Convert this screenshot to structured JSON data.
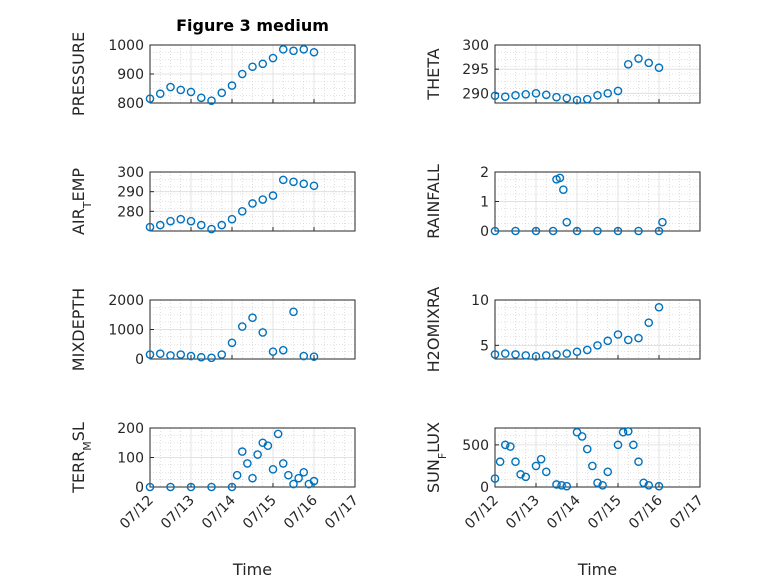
{
  "figure": {
    "title": "Figure 3 medium"
  },
  "colors": {
    "marker": "#0072BD",
    "axis": "#262626",
    "grid": "#dcdcdc"
  },
  "chart_data": [
    {
      "type": "scatter",
      "ylabel": "PRESSURE",
      "title": "Figure 3 medium",
      "ylim": [
        800,
        1000
      ],
      "yticks": [
        800,
        900,
        1000
      ],
      "x": [
        "07/12 00:00",
        "07/12 06:00",
        "07/12 12:00",
        "07/12 18:00",
        "07/13 00:00",
        "07/13 06:00",
        "07/13 12:00",
        "07/13 18:00",
        "07/14 00:00",
        "07/14 06:00",
        "07/14 12:00",
        "07/14 18:00",
        "07/15 00:00",
        "07/15 06:00",
        "07/15 12:00",
        "07/15 18:00",
        "07/16 00:00"
      ],
      "y": [
        815,
        832,
        855,
        845,
        838,
        818,
        808,
        835,
        860,
        900,
        925,
        935,
        955,
        985,
        980,
        985,
        975
      ]
    },
    {
      "type": "scatter",
      "ylabel": "THETA",
      "ylim": [
        288,
        300
      ],
      "yticks": [
        290,
        295,
        300
      ],
      "x": [
        "07/12 00:00",
        "07/12 06:00",
        "07/12 12:00",
        "07/12 18:00",
        "07/13 00:00",
        "07/13 06:00",
        "07/13 12:00",
        "07/13 18:00",
        "07/14 00:00",
        "07/14 06:00",
        "07/14 12:00",
        "07/14 18:00",
        "07/15 00:00",
        "07/15 06:00",
        "07/15 12:00",
        "07/15 18:00",
        "07/16 00:00"
      ],
      "y": [
        289.5,
        289.3,
        289.6,
        289.8,
        290.0,
        289.7,
        289.2,
        289.0,
        288.6,
        288.8,
        289.6,
        290.0,
        290.5,
        296.0,
        297.2,
        296.3,
        295.3
      ]
    },
    {
      "type": "scatter",
      "ylabel": "AIR_TEMP",
      "ylim": [
        270,
        300
      ],
      "yticks": [
        280,
        290,
        300
      ],
      "x": [
        "07/12 00:00",
        "07/12 06:00",
        "07/12 12:00",
        "07/12 18:00",
        "07/13 00:00",
        "07/13 06:00",
        "07/13 12:00",
        "07/13 18:00",
        "07/14 00:00",
        "07/14 06:00",
        "07/14 12:00",
        "07/14 18:00",
        "07/15 00:00",
        "07/15 06:00",
        "07/15 12:00",
        "07/15 18:00",
        "07/16 00:00"
      ],
      "y": [
        272,
        273,
        275,
        276,
        275,
        273,
        271,
        273,
        276,
        280,
        284,
        286,
        288,
        296,
        295,
        294,
        293
      ]
    },
    {
      "type": "scatter",
      "ylabel": "RAINFALL",
      "ylim": [
        0,
        2
      ],
      "yticks": [
        0,
        1,
        2
      ],
      "x": [
        "07/12 00:00",
        "07/12 12:00",
        "07/13 00:00",
        "07/13 10:00",
        "07/13 12:00",
        "07/13 14:00",
        "07/13 16:00",
        "07/13 18:00",
        "07/14 00:00",
        "07/14 12:00",
        "07/15 00:00",
        "07/15 12:00",
        "07/16 00:00",
        "07/16 02:00"
      ],
      "y": [
        0,
        0,
        0,
        0,
        1.75,
        1.8,
        1.4,
        0.3,
        0,
        0,
        0,
        0,
        0,
        0.3
      ]
    },
    {
      "type": "scatter",
      "ylabel": "MIXDEPTH",
      "ylim": [
        0,
        2000
      ],
      "yticks": [
        0,
        1000,
        2000
      ],
      "x": [
        "07/12 00:00",
        "07/12 06:00",
        "07/12 12:00",
        "07/12 18:00",
        "07/13 00:00",
        "07/13 06:00",
        "07/13 12:00",
        "07/13 18:00",
        "07/14 00:00",
        "07/14 06:00",
        "07/14 12:00",
        "07/14 18:00",
        "07/15 00:00",
        "07/15 06:00",
        "07/15 12:00",
        "07/15 18:00",
        "07/16 00:00"
      ],
      "y": [
        150,
        180,
        120,
        150,
        100,
        60,
        40,
        150,
        550,
        1100,
        1400,
        900,
        250,
        300,
        1600,
        100,
        80
      ]
    },
    {
      "type": "scatter",
      "ylabel": "H2OMIXRA",
      "ylim": [
        3.5,
        10
      ],
      "yticks": [
        5,
        10
      ],
      "x": [
        "07/12 00:00",
        "07/12 06:00",
        "07/12 12:00",
        "07/12 18:00",
        "07/13 00:00",
        "07/13 06:00",
        "07/13 12:00",
        "07/13 18:00",
        "07/14 00:00",
        "07/14 06:00",
        "07/14 12:00",
        "07/14 18:00",
        "07/15 00:00",
        "07/15 06:00",
        "07/15 12:00",
        "07/15 18:00",
        "07/16 00:00"
      ],
      "y": [
        4.0,
        4.1,
        4.0,
        3.9,
        3.8,
        3.9,
        4.0,
        4.1,
        4.3,
        4.5,
        5.0,
        5.5,
        6.2,
        5.6,
        5.8,
        7.5,
        9.2
      ]
    },
    {
      "type": "scatter",
      "ylabel": "TERR_MSL",
      "ylim": [
        0,
        200
      ],
      "yticks": [
        0,
        100,
        200
      ],
      "x": [
        "07/12 00:00",
        "07/12 12:00",
        "07/13 00:00",
        "07/13 12:00",
        "07/14 00:00",
        "07/14 03:00",
        "07/14 06:00",
        "07/14 09:00",
        "07/14 12:00",
        "07/14 15:00",
        "07/14 18:00",
        "07/14 21:00",
        "07/15 00:00",
        "07/15 03:00",
        "07/15 06:00",
        "07/15 09:00",
        "07/15 12:00",
        "07/15 15:00",
        "07/15 18:00",
        "07/15 21:00",
        "07/16 00:00"
      ],
      "y": [
        0,
        0,
        0,
        0,
        0,
        40,
        120,
        80,
        30,
        110,
        150,
        140,
        60,
        180,
        80,
        40,
        10,
        30,
        50,
        10,
        20
      ]
    },
    {
      "type": "scatter",
      "ylabel": "SUN_FLUX",
      "ylim": [
        0,
        700
      ],
      "yticks": [
        0,
        500
      ],
      "x": [
        "07/12 00:00",
        "07/12 03:00",
        "07/12 06:00",
        "07/12 09:00",
        "07/12 12:00",
        "07/12 15:00",
        "07/12 18:00",
        "07/13 00:00",
        "07/13 03:00",
        "07/13 06:00",
        "07/13 12:00",
        "07/13 15:00",
        "07/13 18:00",
        "07/14 00:00",
        "07/14 03:00",
        "07/14 06:00",
        "07/14 09:00",
        "07/14 12:00",
        "07/14 15:00",
        "07/14 18:00",
        "07/15 00:00",
        "07/15 03:00",
        "07/15 06:00",
        "07/15 09:00",
        "07/15 12:00",
        "07/15 15:00",
        "07/15 18:00",
        "07/16 00:00"
      ],
      "y": [
        100,
        300,
        500,
        480,
        300,
        150,
        120,
        250,
        330,
        180,
        30,
        20,
        10,
        650,
        600,
        450,
        250,
        50,
        20,
        180,
        500,
        650,
        660,
        500,
        300,
        50,
        20,
        10
      ]
    }
  ],
  "x_axis": {
    "tick_labels": [
      "07/12",
      "07/13",
      "07/14",
      "07/15",
      "07/16",
      "07/17"
    ],
    "start": "07/12 00:00",
    "end": "07/17 00:00",
    "xlabel": "Time"
  }
}
